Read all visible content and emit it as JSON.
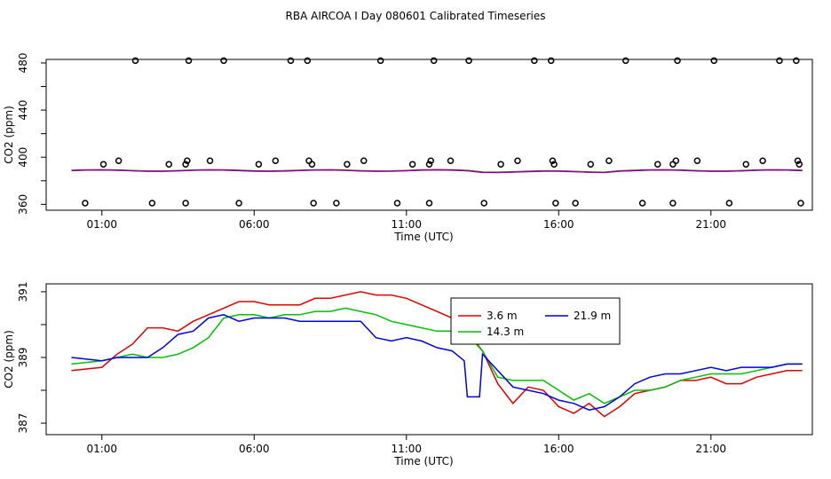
{
  "page_title": "RBA AIRCOA I  Day 080601  Calibrated Timeseries",
  "chart_data": [
    {
      "type": "scatter",
      "xlabel": "Time (UTC)",
      "ylabel": "CO2 (ppm)",
      "xlim": [
        -0.83,
        24.33
      ],
      "ylim": [
        355,
        483
      ],
      "x_ticks": [
        1,
        6,
        11,
        16,
        21
      ],
      "x_tick_labels": [
        "01:00",
        "06:00",
        "11:00",
        "16:00",
        "21:00"
      ],
      "y_ticks": [
        360,
        400,
        440,
        480
      ],
      "y_tick_labels": [
        "360",
        "400",
        "440",
        "480"
      ],
      "grid": false,
      "legend": "none",
      "series": [
        {
          "color": "#000000",
          "marker": "open-circle",
          "points": [
            [
              0.45,
              361
            ],
            [
              1.05,
              394
            ],
            [
              1.55,
              397
            ],
            [
              2.1,
              482
            ],
            [
              2.65,
              361
            ],
            [
              3.2,
              394
            ],
            [
              3.75,
              394
            ],
            [
              3.8,
              397
            ],
            [
              3.85,
              482
            ],
            [
              3.75,
              361
            ],
            [
              4.55,
              397
            ],
            [
              5.0,
              482
            ],
            [
              5.5,
              361
            ],
            [
              6.15,
              394
            ],
            [
              6.7,
              397
            ],
            [
              7.2,
              482
            ],
            [
              7.75,
              482
            ],
            [
              7.8,
              397
            ],
            [
              7.9,
              394
            ],
            [
              7.95,
              361
            ],
            [
              8.7,
              361
            ],
            [
              9.05,
              394
            ],
            [
              9.6,
              397
            ],
            [
              10.15,
              482
            ],
            [
              10.7,
              361
            ],
            [
              11.2,
              394
            ],
            [
              11.75,
              394
            ],
            [
              11.8,
              397
            ],
            [
              11.9,
              482
            ],
            [
              11.75,
              361
            ],
            [
              12.45,
              397
            ],
            [
              13.05,
              482
            ],
            [
              13.55,
              361
            ],
            [
              14.1,
              394
            ],
            [
              14.65,
              397
            ],
            [
              15.2,
              482
            ],
            [
              15.75,
              482
            ],
            [
              15.8,
              397
            ],
            [
              15.85,
              394
            ],
            [
              15.9,
              361
            ],
            [
              16.55,
              361
            ],
            [
              17.05,
              394
            ],
            [
              17.65,
              397
            ],
            [
              18.2,
              482
            ],
            [
              18.75,
              361
            ],
            [
              19.25,
              394
            ],
            [
              19.75,
              394
            ],
            [
              19.85,
              397
            ],
            [
              19.9,
              482
            ],
            [
              19.75,
              361
            ],
            [
              20.55,
              397
            ],
            [
              21.1,
              482
            ],
            [
              21.6,
              361
            ],
            [
              22.15,
              394
            ],
            [
              22.7,
              397
            ],
            [
              23.25,
              482
            ],
            [
              23.8,
              482
            ],
            [
              23.85,
              397
            ],
            [
              23.9,
              394
            ],
            [
              23.95,
              361
            ]
          ]
        }
      ]
    },
    {
      "type": "line",
      "xlabel": "Time (UTC)",
      "ylabel": "CO2 (ppm)",
      "xlim": [
        -0.83,
        24.33
      ],
      "ylim": [
        386.65,
        391.24
      ],
      "x_ticks": [
        1,
        6,
        11,
        16,
        21
      ],
      "x_tick_labels": [
        "01:00",
        "06:00",
        "11:00",
        "16:00",
        "21:00"
      ],
      "y_ticks": [
        387,
        389,
        391
      ],
      "y_tick_labels": [
        "387",
        "389",
        "391"
      ],
      "grid": false,
      "legend": "top-center",
      "series": [
        {
          "name": "3.6 m",
          "color": "#e00000",
          "x": [
            0,
            1,
            1.5,
            2,
            2.5,
            3,
            3.5,
            4,
            4.5,
            5,
            5.5,
            6,
            6.5,
            7,
            7.5,
            8,
            8.5,
            9,
            9.5,
            10,
            10.5,
            11,
            11.5,
            12,
            12.5,
            13,
            13.5,
            14,
            14.5,
            15,
            15.5,
            16,
            16.5,
            17,
            17.5,
            18,
            18.5,
            19,
            19.5,
            20,
            20.5,
            21,
            21.5,
            22,
            22.5,
            23,
            23.5,
            24
          ],
          "values": [
            388.6,
            388.7,
            389.1,
            389.4,
            389.9,
            389.9,
            389.8,
            390.1,
            390.3,
            390.5,
            390.7,
            390.7,
            390.6,
            390.6,
            390.6,
            390.8,
            390.8,
            390.9,
            391.0,
            390.9,
            390.9,
            390.8,
            390.6,
            390.4,
            390.2,
            389.8,
            389.2,
            388.2,
            387.6,
            388.1,
            388.0,
            387.5,
            387.3,
            387.6,
            387.2,
            387.5,
            387.9,
            388.0,
            388.1,
            388.3,
            388.3,
            388.4,
            388.2,
            388.2,
            388.4,
            388.5,
            388.6,
            388.6
          ]
        },
        {
          "name": "14.3 m",
          "color": "#00c000",
          "x": [
            0,
            1,
            1.5,
            2,
            2.5,
            3,
            3.5,
            4,
            4.5,
            5,
            5.5,
            6,
            6.5,
            7,
            7.5,
            8,
            8.5,
            9,
            9.5,
            10,
            10.5,
            11,
            11.5,
            12,
            12.5,
            13,
            13.5,
            14,
            14.5,
            15,
            15.5,
            16,
            16.5,
            17,
            17.5,
            18,
            18.5,
            19,
            19.5,
            20,
            20.5,
            21,
            21.5,
            22,
            22.5,
            23,
            23.5,
            24
          ],
          "values": [
            388.8,
            388.9,
            389.0,
            389.1,
            389.0,
            389.0,
            389.1,
            389.3,
            389.6,
            390.2,
            390.3,
            390.3,
            390.2,
            390.3,
            390.3,
            390.4,
            390.4,
            390.5,
            390.4,
            390.3,
            390.1,
            390.0,
            389.9,
            389.8,
            389.8,
            389.7,
            389.2,
            388.4,
            388.3,
            388.3,
            388.3,
            388.0,
            387.7,
            387.9,
            387.6,
            387.8,
            388.0,
            388.0,
            388.1,
            388.3,
            388.4,
            388.5,
            388.5,
            388.5,
            388.6,
            388.7,
            388.8,
            388.8
          ]
        },
        {
          "name": "21.9 m",
          "color": "#0000e0",
          "x": [
            0,
            1,
            1.5,
            2,
            2.5,
            3,
            3.5,
            4,
            4.5,
            5,
            5.5,
            6,
            6.5,
            7,
            7.5,
            8,
            8.5,
            9,
            9.5,
            10,
            10.5,
            11,
            11.5,
            12,
            12.5,
            12.9,
            13.0,
            13.4,
            13.5,
            14,
            14.5,
            15,
            15.5,
            16,
            16.5,
            17,
            17.5,
            18,
            18.5,
            19,
            19.5,
            20,
            20.5,
            21,
            21.5,
            22,
            22.5,
            23,
            23.5,
            24
          ],
          "values": [
            389.0,
            388.9,
            389.0,
            389.0,
            389.0,
            389.3,
            389.7,
            389.8,
            390.2,
            390.3,
            390.1,
            390.2,
            390.2,
            390.2,
            390.1,
            390.1,
            390.1,
            390.1,
            390.1,
            389.6,
            389.5,
            389.6,
            389.5,
            389.3,
            389.2,
            388.9,
            387.8,
            387.8,
            389.1,
            388.6,
            388.1,
            388.0,
            387.9,
            387.7,
            387.6,
            387.4,
            387.5,
            387.8,
            388.2,
            388.4,
            388.5,
            388.5,
            388.6,
            388.7,
            388.6,
            388.7,
            388.7,
            388.7,
            388.8,
            388.8
          ]
        }
      ]
    }
  ]
}
